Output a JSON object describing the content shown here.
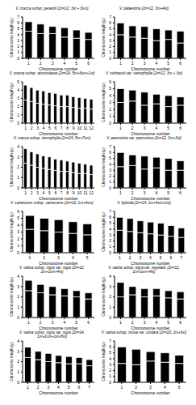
{
  "chart_data": [
    {
      "type": "bar",
      "stacked": true,
      "title": "V. cracca subsp. gerardii (2n=12, 3st + 3sm)",
      "x_label": "Chromosome number",
      "y_label": "Chromosome length (μ)",
      "categories": [
        "1",
        "2",
        "3",
        "4",
        "5",
        "6"
      ],
      "series": [
        {
          "color": "#000000",
          "values": [
            4.6,
            4.2,
            4.2,
            3.6,
            3.4,
            3.2
          ]
        },
        {
          "color": "#000000",
          "values": [
            1.6,
            1.6,
            1.2,
            1.6,
            1.4,
            1.2
          ]
        }
      ],
      "ylim": [
        0,
        7
      ],
      "yticks": [
        0,
        1,
        2,
        3,
        4,
        5,
        6,
        7
      ]
    },
    {
      "type": "bar",
      "stacked": true,
      "title": "V. palaestina (2n=12, 3m+4st)",
      "x_label": "Chromosome number",
      "y_label": "Chromosome length (μ)",
      "categories": [
        "1",
        "2",
        "3",
        "4",
        "5",
        "6"
      ],
      "series": [
        {
          "color": "#000000",
          "values": [
            4,
            3.6,
            3.4,
            3,
            3.2,
            2.6
          ]
        },
        {
          "color": "#000000",
          "values": [
            2,
            1.9,
            2,
            2,
            1.6,
            2
          ]
        }
      ],
      "ylim": [
        0,
        7
      ],
      "yticks": [
        0,
        1,
        2,
        3,
        4,
        5,
        6,
        7
      ]
    },
    {
      "type": "bar",
      "stacked": true,
      "title": "V. cracca subsp. atroviolacea (2n=24, 5m+6sm+1st)",
      "x_label": "Chromosome number",
      "y_label": "Chromosome length (μ)",
      "categories": [
        "1",
        "2",
        "3",
        "4",
        "5",
        "6",
        "7",
        "8",
        "9",
        "10",
        "11",
        "12"
      ],
      "series": [
        {
          "color": "#000000",
          "values": [
            2.8,
            2.6,
            2.4,
            2.3,
            2.2,
            2.1,
            2.0,
            2.0,
            1.9,
            1.8,
            1.8,
            1.7
          ]
        },
        {
          "color": "#000000",
          "values": [
            1.8,
            1.7,
            1.6,
            1.6,
            1.5,
            1.5,
            1.4,
            1.4,
            1.3,
            1.3,
            1.2,
            1.2
          ]
        }
      ],
      "ylim": [
        0,
        5
      ],
      "yticks": [
        0,
        1,
        2,
        3,
        4,
        5
      ]
    },
    {
      "type": "bar",
      "stacked": true,
      "title": "V. michauxii var. stenophylla (2n=12, 3m + 3st)",
      "x_label": "Chromosome number",
      "y_label": "Chromosome length (μ)",
      "categories": [
        "1",
        "2",
        "3",
        "4",
        "5",
        "6"
      ],
      "series": [
        {
          "color": "#000000",
          "values": [
            3,
            3.2,
            2.6,
            2.8,
            2.4,
            2.6
          ]
        },
        {
          "color": "#000000",
          "values": [
            2,
            1.6,
            1.9,
            1.4,
            1.6,
            1.2
          ]
        }
      ],
      "ylim": [
        0,
        6
      ],
      "yticks": [
        0,
        1,
        2,
        3,
        4,
        5,
        6
      ]
    },
    {
      "type": "bar",
      "stacked": true,
      "title": "V. cracca subsp. stenophylla (2n=24, 5m+7sm)",
      "x_label": "Chromosome number",
      "y_label": "Chromosome length (μ)",
      "categories": [
        "1",
        "2",
        "3",
        "4",
        "5",
        "6",
        "7",
        "8",
        "9",
        "10",
        "11",
        "12"
      ],
      "series": [
        {
          "color": "#000000",
          "values": [
            2.4,
            2.2,
            2.0,
            1.9,
            1.8,
            1.7,
            1.6,
            1.6,
            1.5,
            1.4,
            1.4,
            1.3
          ]
        },
        {
          "color": "#000000",
          "values": [
            1.4,
            1.3,
            1.3,
            1.2,
            1.2,
            1.1,
            1.1,
            1.0,
            1.0,
            1.0,
            0.9,
            0.9
          ]
        }
      ],
      "ylim": [
        0,
        4
      ],
      "yticks": [
        0,
        1,
        2,
        3,
        4
      ]
    },
    {
      "type": "bar",
      "stacked": true,
      "title": "V. pannonica var. pannonica (2n=12, 3m+3st)",
      "x_label": "Chromosome number",
      "y_label": "Chromosome length (μ)",
      "categories": [
        "1",
        "2",
        "3",
        "4",
        "5",
        "6"
      ],
      "series": [
        {
          "color": "#000000",
          "values": [
            3.6,
            3.8,
            3.2,
            3.4,
            3.0,
            3.0
          ]
        },
        {
          "color": "#000000",
          "values": [
            2.4,
            1.8,
            2.2,
            1.8,
            2.0,
            1.6
          ]
        }
      ],
      "ylim": [
        0,
        7
      ],
      "yticks": [
        0,
        1,
        2,
        3,
        4,
        5,
        6,
        7
      ]
    },
    {
      "type": "bar",
      "stacked": true,
      "title": "V. canescens subsp. canescens (2n=10, 1m+4sm)",
      "x_label": "Chromosome number",
      "y_label": "Chromosome length (μ)",
      "categories": [
        "1",
        "2",
        "3",
        "4",
        "5"
      ],
      "series": [
        {
          "color": "#000000",
          "values": [
            3.4,
            3.2,
            3.0,
            2.8,
            2.6
          ]
        },
        {
          "color": "#000000",
          "values": [
            2.0,
            1.8,
            1.8,
            1.7,
            1.6
          ]
        }
      ],
      "ylim": [
        0,
        6
      ],
      "yticks": [
        0,
        1,
        2,
        3,
        4,
        5,
        6
      ]
    },
    {
      "type": "bar",
      "stacked": true,
      "title": "V. hybrida (2n=14, 1m+4sm+1st)",
      "x_label": "Chromosome number",
      "y_label": "Chromosome length (μ)",
      "categories": [
        "1",
        "2",
        "3",
        "4",
        "5",
        "6",
        "7"
      ],
      "series": [
        {
          "color": "#000000",
          "values": [
            3.8,
            3.6,
            3.4,
            3.2,
            3,
            2.8,
            2.6
          ]
        },
        {
          "color": "#000000",
          "values": [
            2.2,
            2.2,
            2,
            2,
            2,
            1.8,
            1.6
          ]
        }
      ],
      "ylim": [
        0,
        7
      ],
      "yticks": [
        0,
        1,
        2,
        3,
        4,
        5,
        6,
        7
      ]
    },
    {
      "type": "bar",
      "stacked": true,
      "title": "V. sativa subsp. nigra var. nigra (2n=12, 1m+1sm+4st)",
      "x_label": "Chromosome number",
      "y_label": "Chromosome length (μ)",
      "categories": [
        "1",
        "2",
        "3",
        "4",
        "5",
        "6"
      ],
      "series": [
        {
          "color": "#000000",
          "values": [
            2.6,
            2.4,
            2.2,
            2.1,
            2.0,
            1.8
          ]
        },
        {
          "color": "#000000",
          "values": [
            1.0,
            0.8,
            0.8,
            0.7,
            0.6,
            0.6
          ]
        }
      ],
      "ylim": [
        0,
        4
      ],
      "yticks": [
        0,
        1,
        2,
        3,
        4
      ]
    },
    {
      "type": "bar",
      "stacked": true,
      "title": "V. sativa subsp. nigra var. segetalis (2n=12, 1m+1sm+4st)",
      "x_label": "Chromosome number",
      "y_label": "Chromosome length (μ)",
      "categories": [
        "1",
        "2",
        "3",
        "4",
        "5",
        "6"
      ],
      "series": [
        {
          "color": "#000000",
          "values": [
            2.0,
            2.2,
            2.0,
            2.1,
            1.9,
            1.8
          ]
        },
        {
          "color": "#000000",
          "values": [
            1.4,
            0.8,
            0.8,
            0.7,
            0.7,
            0.7
          ]
        }
      ],
      "ylim": [
        0,
        4
      ],
      "yticks": [
        0,
        1,
        2,
        3,
        4
      ]
    },
    {
      "type": "bar",
      "stacked": true,
      "title": "V. sativa subsp. nigra var. nigra (2n=14, 1m+1sm+1st+5st)",
      "x_label": "Chromosome number",
      "y_label": "Chromosome length (μ)",
      "categories": [
        "1",
        "2",
        "3",
        "4",
        "5",
        "6",
        "7"
      ],
      "series": [
        {
          "color": "#000000",
          "values": [
            2.4,
            2.2,
            2.0,
            1.9,
            1.8,
            1.8,
            1.6
          ]
        },
        {
          "color": "#000000",
          "values": [
            1.0,
            0.8,
            0.8,
            0.7,
            0.7,
            0.6,
            0.6
          ]
        }
      ],
      "ylim": [
        0,
        4
      ],
      "yticks": [
        0,
        1,
        2,
        3,
        4
      ]
    },
    {
      "type": "bar",
      "stacked": true,
      "title": "V. sativa subsp. incisa var. cordata (2n=10, 2m+3st)",
      "x_label": "Chromosome number",
      "y_label": "Chromosome length (μ)",
      "categories": [
        "1",
        "2",
        "3",
        "4",
        "5"
      ],
      "series": [
        {
          "color": "#000000",
          "values": [
            3.2,
            3.0,
            3.6,
            3.4,
            3.2
          ]
        },
        {
          "color": "#000000",
          "values": [
            2.8,
            2.6,
            1.6,
            1.6,
            1.4
          ]
        }
      ],
      "ylim": [
        0,
        7
      ],
      "yticks": [
        0,
        1,
        2,
        3,
        4,
        5,
        6,
        7
      ]
    }
  ]
}
